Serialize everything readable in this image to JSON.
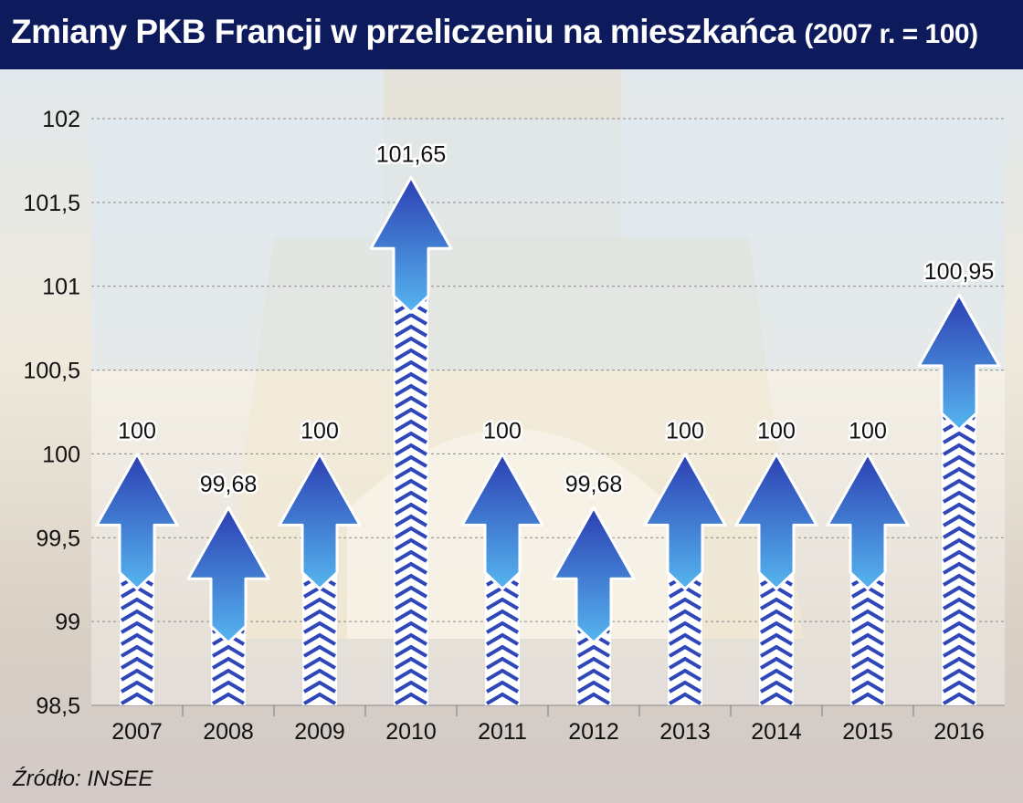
{
  "header": {
    "title": "Zmiany PKB Francji w przeliczeniu na mieszkańca",
    "subtitle": "(2007 r. = 100)"
  },
  "footer": {
    "source": "Źródło: INSEE"
  },
  "colors": {
    "title_bg": "#0d1a5c",
    "arrow_top": "#2c3fb2",
    "arrow_bottom": "#56b5f0",
    "chevron": "#2f47b8"
  },
  "chart_data": {
    "type": "bar",
    "categories": [
      "2007",
      "2008",
      "2009",
      "2010",
      "2011",
      "2012",
      "2013",
      "2014",
      "2015",
      "2016"
    ],
    "values": [
      100,
      99.68,
      100,
      101.65,
      100,
      99.68,
      100,
      100,
      100,
      100.95
    ],
    "value_labels": [
      "100",
      "99,68",
      "100",
      "101,65",
      "100",
      "99,68",
      "100",
      "100",
      "100",
      "100,95"
    ],
    "ylim": [
      98.5,
      102
    ],
    "yticks": [
      98.5,
      99,
      99.5,
      100,
      100.5,
      101,
      101.5,
      102
    ],
    "ytick_labels": [
      "98,5",
      "99",
      "99,5",
      "100",
      "100,5",
      "101",
      "101,5",
      "102"
    ],
    "grid": true,
    "mark": "arrow-up"
  }
}
